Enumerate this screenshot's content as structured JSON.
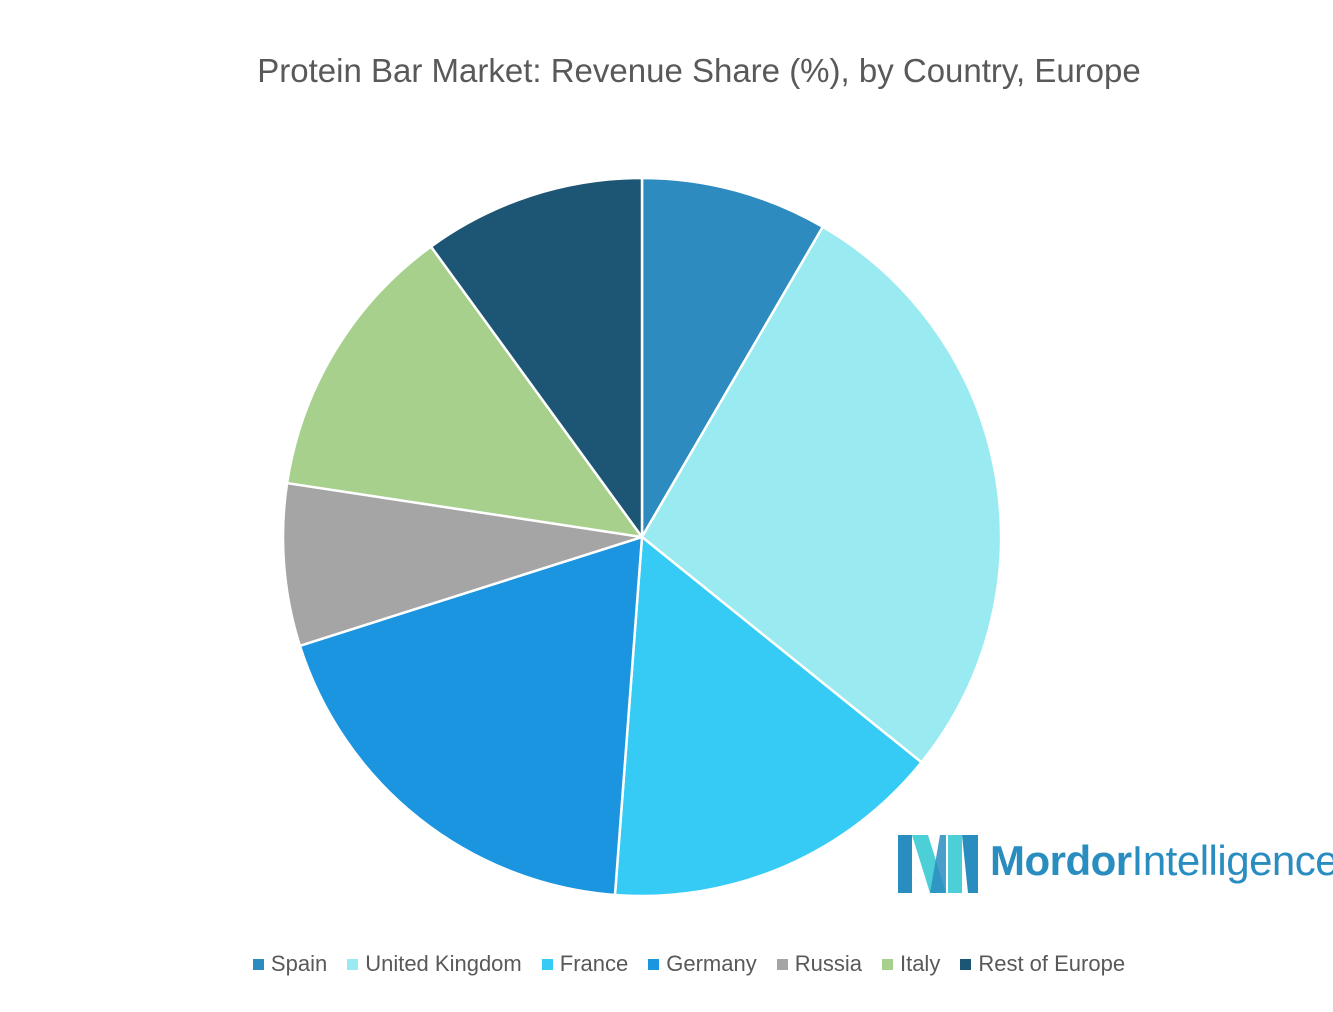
{
  "chart_data": {
    "type": "pie",
    "title": "Protein Bar Market: Revenue Share (%), by Country, Europe",
    "legend_position": "bottom",
    "slices": [
      {
        "label": "Spain",
        "value": 8.4,
        "color": "#2e8bc0"
      },
      {
        "label": "United Kingdom",
        "value": 27.4,
        "color": "#9aeaf1"
      },
      {
        "label": "France",
        "value": 15.4,
        "color": "#36cbf5"
      },
      {
        "label": "Germany",
        "value": 18.9,
        "color": "#1b95e0"
      },
      {
        "label": "Russia",
        "value": 7.3,
        "color": "#a5a5a5"
      },
      {
        "label": "Italy",
        "value": 12.6,
        "color": "#a7d08c"
      },
      {
        "label": "Rest of Europe",
        "value": 10.0,
        "color": "#1d5574"
      }
    ]
  },
  "logo": {
    "word1": "Mordor",
    "word2": "Intelligence",
    "colors": {
      "dark": "#2a8dc0",
      "light": "#4ccfd6"
    }
  }
}
